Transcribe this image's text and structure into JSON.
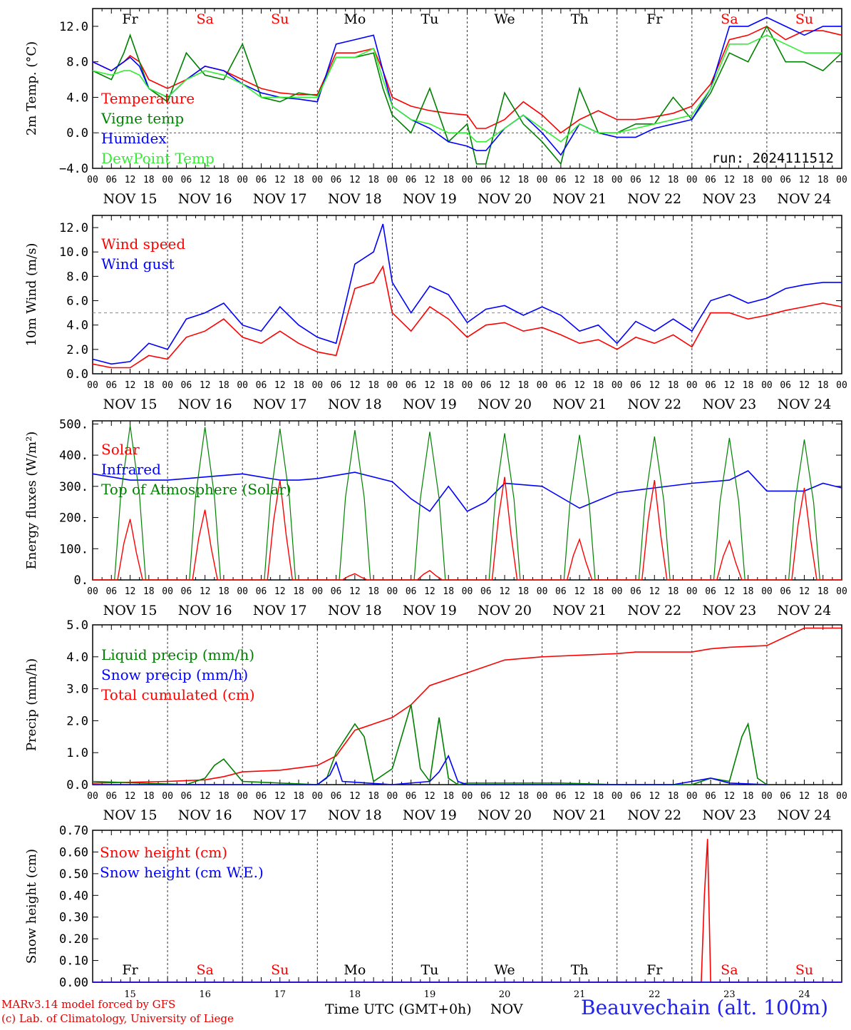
{
  "run": "run: 2024111512",
  "footer": {
    "credit1": "MARv3.14 model forced by GFS",
    "credit2": "(c) Lab. of Climatology, University of Liege",
    "xtitle": "Time UTC (GMT+0h)",
    "month": "NOV",
    "station": "Beauvechain (alt. 100m)"
  },
  "date_labels": [
    "NOV 15",
    "NOV 16",
    "NOV 17",
    "NOV 18",
    "NOV 19",
    "NOV 20",
    "NOV 21",
    "NOV 22",
    "NOV 23",
    "NOV 24"
  ],
  "hour_ticks": [
    "00",
    "06",
    "12",
    "18"
  ],
  "last_hour_tick": "00",
  "day_labels": [
    "Fr",
    "Sa",
    "Su",
    "Mo",
    "Tu",
    "We",
    "Th",
    "Fr",
    "Sa",
    "Su"
  ],
  "weekend_flags": [
    false,
    true,
    true,
    false,
    false,
    false,
    false,
    false,
    true,
    true
  ],
  "day_numbers": [
    "15",
    "16",
    "17",
    "18",
    "19",
    "20",
    "21",
    "22",
    "23",
    "24"
  ],
  "colors": {
    "red": "#ff0000",
    "green": "#008000",
    "blue": "#0000ff",
    "lightgreen": "#33ee33",
    "black": "#000000",
    "dash": "#777777"
  },
  "chart_data": [
    {
      "type": "line",
      "ylabel": "2m Temp. (°C)",
      "ylim": [
        -4,
        14
      ],
      "yticks": [
        -4,
        0,
        4,
        8,
        12
      ],
      "ytick_labels": [
        "−4.0",
        "0.0",
        "4.0",
        "8.0",
        "12.0"
      ],
      "x_unit": "hours since NOV 15 00 UTC",
      "legend": [
        "Temperature",
        "Vigne temp",
        "Humidex",
        "DewPoint Temp"
      ],
      "series": [
        {
          "name": "Temperature",
          "color": "red",
          "x": [
            0,
            6,
            10,
            12,
            15,
            18,
            24,
            30,
            36,
            42,
            48,
            54,
            60,
            66,
            72,
            78,
            84,
            90,
            93,
            96,
            102,
            108,
            114,
            120,
            123,
            126,
            132,
            138,
            144,
            150,
            156,
            162,
            168,
            174,
            180,
            186,
            192,
            198,
            204,
            210,
            216,
            222,
            228,
            234,
            240
          ],
          "y": [
            8,
            7,
            8,
            8.7,
            8,
            6,
            5,
            6,
            7.5,
            7,
            6,
            5,
            4.5,
            4.3,
            4.3,
            9,
            9,
            9.5,
            7,
            4,
            3,
            2.5,
            2.2,
            2,
            0.5,
            0.5,
            1.5,
            3.5,
            2,
            0,
            1.5,
            2.5,
            1.5,
            1.5,
            1.8,
            2.2,
            3,
            5.5,
            10.5,
            11,
            12,
            10.5,
            11.5,
            11.5,
            11
          ]
        },
        {
          "name": "Vigne temp",
          "color": "green",
          "x": [
            0,
            6,
            10,
            12,
            15,
            18,
            24,
            30,
            36,
            42,
            48,
            54,
            60,
            66,
            72,
            78,
            84,
            90,
            93,
            96,
            102,
            108,
            114,
            120,
            123,
            126,
            132,
            138,
            144,
            150,
            156,
            162,
            168,
            174,
            180,
            186,
            192,
            198,
            204,
            210,
            216,
            222,
            228,
            234,
            240
          ],
          "y": [
            7,
            6,
            9,
            11,
            8,
            5,
            3.5,
            9,
            6.5,
            6,
            10,
            4,
            3.5,
            4.5,
            4.2,
            8.5,
            8.5,
            9,
            5,
            2,
            0,
            5,
            -1,
            1,
            -3.5,
            -3.5,
            4.5,
            1,
            -1,
            -3.5,
            5,
            0,
            0,
            1,
            1,
            4,
            1.5,
            4.5,
            9,
            8,
            12,
            8,
            8,
            7,
            9
          ]
        },
        {
          "name": "Humidex",
          "color": "blue",
          "x": [
            0,
            6,
            10,
            12,
            15,
            18,
            24,
            30,
            36,
            42,
            48,
            54,
            60,
            66,
            72,
            78,
            84,
            90,
            93,
            96,
            102,
            108,
            114,
            120,
            123,
            126,
            132,
            138,
            144,
            150,
            156,
            162,
            168,
            174,
            180,
            186,
            192,
            198,
            204,
            210,
            216,
            222,
            228,
            234,
            240
          ],
          "y": [
            8,
            7,
            8,
            8.5,
            7.5,
            5,
            4,
            6,
            7.5,
            7,
            5.5,
            4.5,
            4,
            3.8,
            3.5,
            10,
            10.5,
            11,
            7,
            3,
            1.5,
            0.5,
            -1,
            -1.5,
            -2,
            -2,
            0.5,
            2,
            0,
            -2.5,
            1,
            0,
            -0.5,
            -0.5,
            0.5,
            1,
            1.5,
            5,
            12,
            12,
            13,
            12,
            11,
            12,
            12
          ]
        },
        {
          "name": "DewPoint Temp",
          "color": "lightgreen",
          "x": [
            0,
            6,
            10,
            12,
            15,
            18,
            24,
            30,
            36,
            42,
            48,
            54,
            60,
            66,
            72,
            78,
            84,
            90,
            93,
            96,
            102,
            108,
            114,
            120,
            123,
            126,
            132,
            138,
            144,
            150,
            156,
            162,
            168,
            174,
            180,
            186,
            192,
            198,
            204,
            210,
            216,
            222,
            228,
            234,
            240
          ],
          "y": [
            7,
            6.5,
            7,
            7,
            6.5,
            5,
            4,
            6,
            7,
            6.5,
            5.5,
            4,
            4,
            4,
            4,
            8.5,
            8.5,
            9.5,
            6,
            3,
            1.5,
            1,
            0,
            0,
            -1,
            -1,
            0.5,
            2,
            0.5,
            -1,
            1,
            0,
            0,
            0.5,
            1,
            1.5,
            2,
            5,
            10,
            10,
            11,
            10,
            9,
            9,
            9
          ]
        }
      ]
    },
    {
      "type": "line",
      "ylabel": "10m Wind (m/s)",
      "ylim": [
        0,
        13
      ],
      "yticks": [
        0,
        2,
        4,
        6,
        8,
        10,
        12
      ],
      "ytick_labels": [
        "0.0",
        "2.0",
        "4.0",
        "6.0",
        "8.0",
        "10.0",
        "12.0"
      ],
      "reference_line": 5,
      "legend": [
        "Wind speed",
        "Wind gust"
      ],
      "series": [
        {
          "name": "Wind speed",
          "color": "red",
          "x": [
            0,
            6,
            12,
            18,
            24,
            30,
            36,
            42,
            48,
            54,
            60,
            66,
            72,
            78,
            84,
            90,
            93,
            96,
            102,
            108,
            114,
            120,
            126,
            132,
            138,
            144,
            150,
            156,
            162,
            168,
            174,
            180,
            186,
            192,
            198,
            204,
            210,
            216,
            222,
            228,
            234,
            240
          ],
          "y": [
            0.8,
            0.5,
            0.5,
            1.5,
            1.2,
            3,
            3.5,
            4.5,
            3,
            2.5,
            3.5,
            2.5,
            1.8,
            1.5,
            7,
            7.5,
            8.8,
            5,
            3.5,
            5.5,
            4.5,
            3,
            4,
            4.2,
            3.5,
            3.8,
            3.2,
            2.5,
            2.8,
            2,
            3,
            2.5,
            3.2,
            2.2,
            5,
            5,
            4.5,
            4.8,
            5.2,
            5.5,
            5.8,
            5.5
          ]
        },
        {
          "name": "Wind gust",
          "color": "blue",
          "x": [
            0,
            6,
            12,
            18,
            24,
            30,
            36,
            42,
            48,
            54,
            60,
            66,
            72,
            78,
            84,
            90,
            93,
            96,
            102,
            108,
            114,
            120,
            126,
            132,
            138,
            144,
            150,
            156,
            162,
            168,
            174,
            180,
            186,
            192,
            198,
            204,
            210,
            216,
            222,
            228,
            234,
            240
          ],
          "y": [
            1.2,
            0.8,
            1,
            2.5,
            2,
            4.5,
            5,
            5.8,
            4,
            3.5,
            5.5,
            4,
            3,
            2.5,
            9,
            10,
            12.3,
            7.5,
            5,
            7.2,
            6.5,
            4.2,
            5.3,
            5.6,
            4.8,
            5.5,
            4.8,
            3.5,
            4,
            2.5,
            4.3,
            3.5,
            4.5,
            3.5,
            6,
            6.5,
            5.8,
            6.2,
            7,
            7.3,
            7.5,
            7.5
          ]
        }
      ]
    },
    {
      "type": "line",
      "ylabel": "Energy fluxes (W/m²)",
      "ylim": [
        0,
        510
      ],
      "yticks": [
        0,
        100,
        200,
        300,
        400,
        500
      ],
      "ytick_labels": [
        "0.",
        "100.",
        "200.",
        "300.",
        "400.",
        "500."
      ],
      "legend": [
        "Solar",
        "Infrared",
        "Top of Atmosphere (Solar)"
      ],
      "series": [
        {
          "name": "Solar",
          "color": "red",
          "toa_peaks": [
            495,
            490,
            485,
            480,
            475,
            470,
            465,
            460,
            455,
            450
          ],
          "solar_peaks": [
            195,
            225,
            320,
            20,
            30,
            330,
            130,
            320,
            125,
            295
          ]
        },
        {
          "name": "Infrared",
          "color": "blue",
          "x": [
            0,
            12,
            24,
            36,
            48,
            60,
            66,
            72,
            84,
            96,
            102,
            108,
            114,
            120,
            126,
            132,
            144,
            156,
            168,
            180,
            192,
            204,
            210,
            216,
            228,
            234,
            240
          ],
          "y": [
            340,
            320,
            320,
            330,
            340,
            320,
            320,
            325,
            345,
            315,
            260,
            220,
            300,
            220,
            250,
            310,
            300,
            230,
            280,
            295,
            310,
            320,
            350,
            285,
            285,
            310,
            295
          ]
        },
        {
          "name": "Top of Atmosphere (Solar)",
          "color": "green"
        }
      ]
    },
    {
      "type": "line",
      "ylabel": "Precip (mm/h)",
      "ylim": [
        0,
        5
      ],
      "yticks": [
        0,
        1,
        2,
        3,
        4,
        5
      ],
      "ytick_labels": [
        "0.0",
        "1.0",
        "2.0",
        "3.0",
        "4.0",
        "5.0"
      ],
      "legend": [
        "Liquid precip (mm/h)",
        "Snow precip (mm/h)",
        "Total cumulated (cm)"
      ],
      "series": [
        {
          "name": "Total cumulated (cm)",
          "color": "red",
          "x": [
            0,
            24,
            36,
            42,
            48,
            60,
            72,
            78,
            84,
            90,
            96,
            102,
            108,
            120,
            132,
            144,
            156,
            168,
            174,
            180,
            192,
            198,
            204,
            216,
            228,
            240
          ],
          "y": [
            0.05,
            0.1,
            0.15,
            0.25,
            0.4,
            0.45,
            0.6,
            0.9,
            1.7,
            1.9,
            2.1,
            2.5,
            3.1,
            3.5,
            3.9,
            4.0,
            4.05,
            4.1,
            4.15,
            4.15,
            4.15,
            4.25,
            4.3,
            4.35,
            4.9,
            4.9
          ]
        },
        {
          "name": "Liquid precip (mm/h)",
          "color": "green",
          "x": [
            0,
            30,
            36,
            39,
            42,
            48,
            72,
            75,
            78,
            84,
            87,
            90,
            96,
            102,
            105,
            108,
            111,
            114,
            117,
            120,
            150,
            168,
            192,
            198,
            204,
            208,
            210,
            213,
            216
          ],
          "y": [
            0.1,
            0,
            0.2,
            0.6,
            0.8,
            0.1,
            0,
            0.2,
            1.0,
            1.9,
            1.5,
            0.1,
            0.5,
            2.5,
            0.5,
            0.1,
            2.1,
            0.2,
            0,
            0.05,
            0.05,
            0,
            0,
            0.2,
            0.1,
            1.5,
            1.9,
            0.2,
            0
          ]
        },
        {
          "name": "Snow precip (mm/h)",
          "color": "blue",
          "x": [
            0,
            60,
            72,
            76,
            78,
            80,
            96,
            108,
            111,
            114,
            117,
            120,
            186,
            198,
            204,
            216
          ],
          "y": [
            0,
            0,
            0,
            0.3,
            0.7,
            0.1,
            0,
            0.1,
            0.4,
            0.9,
            0.1,
            0,
            0,
            0.2,
            0.05,
            0
          ]
        }
      ]
    },
    {
      "type": "line",
      "ylabel": "Snow height (cm)",
      "ylim": [
        0,
        0.7
      ],
      "yticks": [
        0,
        0.1,
        0.2,
        0.3,
        0.4,
        0.5,
        0.6,
        0.7
      ],
      "ytick_labels": [
        "0.00",
        "0.10",
        "0.20",
        "0.30",
        "0.40",
        "0.50",
        "0.60",
        "0.70"
      ],
      "legend": [
        "Snow height (cm)",
        "Snow height (cm W.E.)"
      ],
      "series": [
        {
          "name": "Snow height (cm)",
          "color": "red",
          "x": [
            0,
            195,
            196,
            197,
            198,
            240
          ],
          "y": [
            0,
            0,
            0.4,
            0.66,
            0,
            0
          ]
        },
        {
          "name": "Snow height (cm W.E.)",
          "color": "blue",
          "x": [
            0,
            240
          ],
          "y": [
            0,
            0
          ]
        }
      ]
    }
  ]
}
